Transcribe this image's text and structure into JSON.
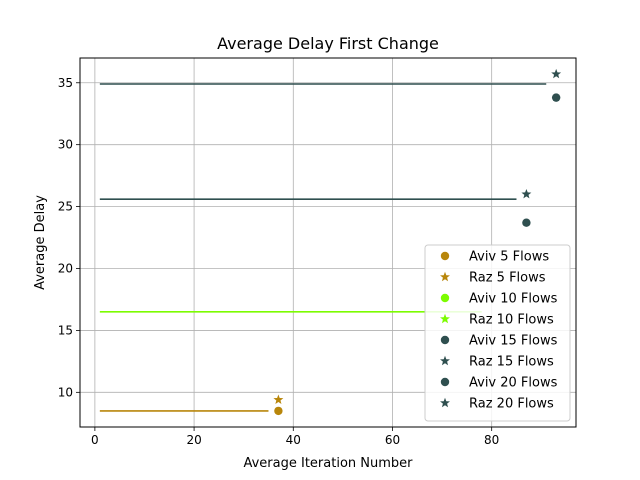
{
  "chart_data": {
    "type": "scatter",
    "title": "Average Delay First Change",
    "xlabel": "Average Iteration Number",
    "ylabel": "Average Delay",
    "xlim": [
      -3,
      97
    ],
    "ylim": [
      7.2,
      37.0
    ],
    "xticks": [
      0,
      20,
      40,
      60,
      80
    ],
    "yticks": [
      10,
      15,
      20,
      25,
      30,
      35
    ],
    "grid": true,
    "legend_position": "lower-right",
    "series": [
      {
        "name": "Aviv 5 Flows",
        "marker": "circle",
        "color": "#b8860b",
        "x": [
          37
        ],
        "y": [
          8.5
        ]
      },
      {
        "name": "Raz 5 Flows",
        "marker": "star",
        "color": "#b8860b",
        "x": [
          37
        ],
        "y": [
          9.4
        ]
      },
      {
        "name": "Aviv 10 Flows",
        "marker": "circle",
        "color": "#7cfc00",
        "x": [],
        "y": []
      },
      {
        "name": "Raz 10 Flows",
        "marker": "star",
        "color": "#7cfc00",
        "x": [],
        "y": []
      },
      {
        "name": "Aviv 15 Flows",
        "marker": "circle",
        "color": "#2f4f4f",
        "x": [
          87
        ],
        "y": [
          23.7
        ]
      },
      {
        "name": "Raz 15 Flows",
        "marker": "star",
        "color": "#2f4f4f",
        "x": [
          87
        ],
        "y": [
          26.0
        ]
      },
      {
        "name": "Aviv 20 Flows",
        "marker": "circle",
        "color": "#2f4f4f",
        "x": [
          93
        ],
        "y": [
          33.8
        ]
      },
      {
        "name": "Raz 20 Flows",
        "marker": "star",
        "color": "#2f4f4f",
        "x": [
          93
        ],
        "y": [
          35.7
        ]
      }
    ],
    "hlines": [
      {
        "y": 8.5,
        "x0": 1,
        "x1": 35,
        "color": "#b8860b"
      },
      {
        "y": 16.5,
        "x0": 1,
        "x1": 78,
        "color": "#7cfc00"
      },
      {
        "y": 25.6,
        "x0": 1,
        "x1": 85,
        "color": "#2f4f4f"
      },
      {
        "y": 34.9,
        "x0": 1,
        "x1": 91,
        "color": "#2f4f4f"
      }
    ]
  }
}
